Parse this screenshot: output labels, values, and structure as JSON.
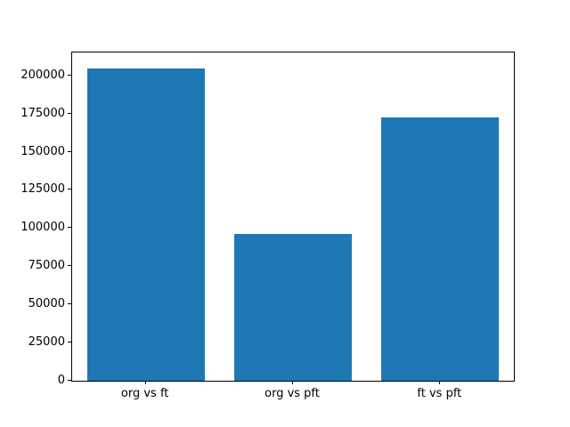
{
  "figure": {
    "background": "#ffffff",
    "frame_color": "#000000"
  },
  "chart_data": {
    "type": "bar",
    "categories": [
      "org vs ft",
      "org vs pft",
      "ft vs pft"
    ],
    "values": [
      204800,
      95900,
      172600
    ],
    "title": "",
    "xlabel": "",
    "ylabel": "",
    "ylim": [
      0,
      215000
    ],
    "yticks": [
      0,
      25000,
      50000,
      75000,
      100000,
      125000,
      150000,
      175000,
      200000
    ],
    "bar_color": "#1f77b4",
    "bar_width_fraction": 0.8,
    "grid": false,
    "legend_position": "none"
  }
}
